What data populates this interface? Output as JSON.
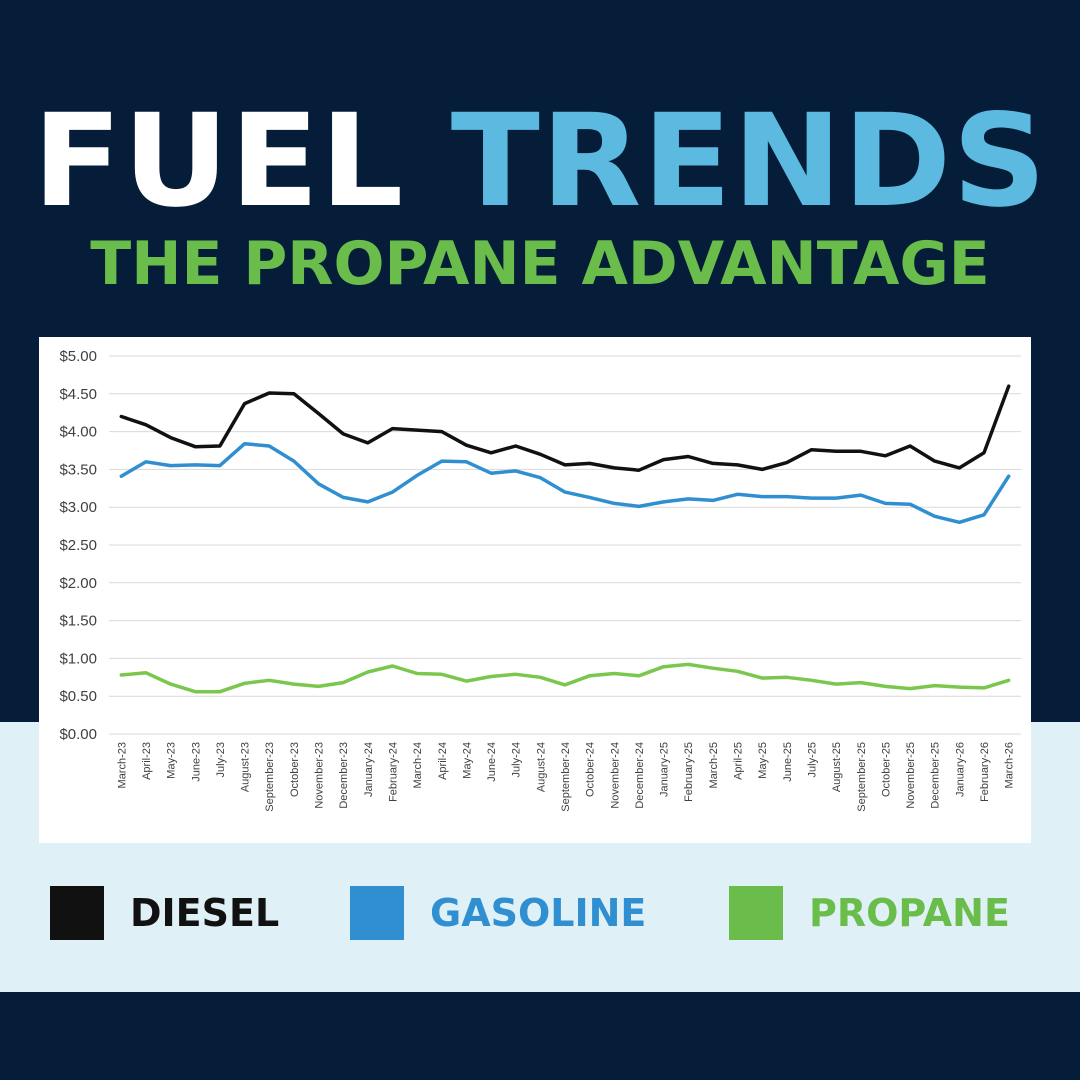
{
  "header": {
    "title_part1": "FUEL",
    "title_part2": "TRENDS",
    "subtitle": "THE PROPANE ADVANTAGE"
  },
  "colors": {
    "background_dark": "#051d38",
    "background_light": "#dff1f7",
    "title_white": "#ffffff",
    "title_blue": "#5cb9e0",
    "subtitle_green": "#6abd4b",
    "diesel": "#111111",
    "gasoline": "#2f8fd0",
    "propane": "#7bc74d"
  },
  "legend": [
    {
      "label": "DIESEL",
      "color": "#111111"
    },
    {
      "label": "GASOLINE",
      "color": "#2f8fd0"
    },
    {
      "label": "PROPANE",
      "color": "#6abd4b"
    }
  ],
  "chart_data": {
    "type": "line",
    "title": "",
    "xlabel": "",
    "ylabel": "",
    "ylim": [
      0,
      5
    ],
    "y_ticks": [
      "$0.00",
      "$0.50",
      "$1.00",
      "$1.50",
      "$2.00",
      "$2.50",
      "$3.00",
      "$3.50",
      "$4.00",
      "$4.50",
      "$5.00"
    ],
    "grid": "horizontal",
    "legend_position": "bottom",
    "categories": [
      "March-23",
      "April-23",
      "May-23",
      "June-23",
      "July-23",
      "August-23",
      "September-23",
      "October-23",
      "November-23",
      "December-23",
      "January-24",
      "February-24",
      "March-24",
      "April-24",
      "May-24",
      "June-24",
      "July-24",
      "August-24",
      "September-24",
      "October-24",
      "November-24",
      "December-24",
      "January-25",
      "February-25",
      "March-25",
      "April-25",
      "May-25",
      "June-25",
      "July-25",
      "August-25",
      "September-25",
      "October-25",
      "November-25",
      "December-25",
      "January-26",
      "February-26",
      "March-26"
    ],
    "series": [
      {
        "name": "DIESEL",
        "color": "#111111",
        "values": [
          4.2,
          4.09,
          3.92,
          3.8,
          3.81,
          4.37,
          4.51,
          4.5,
          4.24,
          3.97,
          3.85,
          4.04,
          4.02,
          4.0,
          3.82,
          3.72,
          3.81,
          3.7,
          3.56,
          3.58,
          3.52,
          3.49,
          3.63,
          3.67,
          3.58,
          3.56,
          3.5,
          3.59,
          3.76,
          3.74,
          3.74,
          3.68,
          3.81,
          3.61,
          3.52,
          3.72,
          4.6
        ]
      },
      {
        "name": "GASOLINE",
        "color": "#2f8fd0",
        "values": [
          3.41,
          3.6,
          3.55,
          3.56,
          3.55,
          3.84,
          3.81,
          3.61,
          3.31,
          3.13,
          3.07,
          3.2,
          3.42,
          3.61,
          3.6,
          3.45,
          3.48,
          3.39,
          3.2,
          3.13,
          3.05,
          3.01,
          3.07,
          3.11,
          3.09,
          3.17,
          3.14,
          3.14,
          3.12,
          3.12,
          3.16,
          3.05,
          3.04,
          2.88,
          2.8,
          2.9,
          3.41
        ]
      },
      {
        "name": "PROPANE",
        "color": "#7bc74d",
        "values": [
          0.78,
          0.81,
          0.66,
          0.56,
          0.56,
          0.67,
          0.71,
          0.66,
          0.63,
          0.68,
          0.82,
          0.9,
          0.8,
          0.79,
          0.7,
          0.76,
          0.79,
          0.75,
          0.65,
          0.77,
          0.8,
          0.77,
          0.89,
          0.92,
          0.87,
          0.83,
          0.74,
          0.75,
          0.71,
          0.66,
          0.68,
          0.63,
          0.6,
          0.64,
          0.62,
          0.61,
          0.71
        ]
      }
    ]
  }
}
